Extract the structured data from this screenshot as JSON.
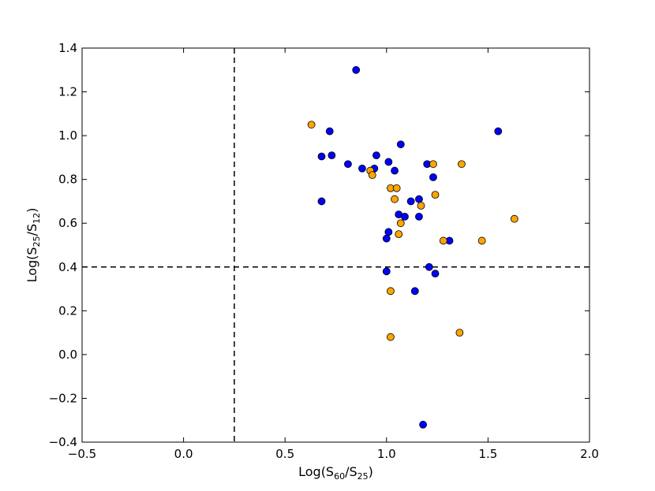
{
  "chart_data": {
    "type": "scatter",
    "title": "",
    "xlabel": {
      "base": "Log(S",
      "sub1": "60",
      "mid": "/S",
      "sub2": "25",
      "end": ")"
    },
    "ylabel": {
      "base": "Log(S",
      "sub1": "25",
      "mid": "/S",
      "sub2": "12",
      "end": ")"
    },
    "xlim": [
      -0.5,
      2.0
    ],
    "ylim": [
      -0.4,
      1.4
    ],
    "xticks": [
      -0.5,
      0.0,
      0.5,
      1.0,
      1.5,
      2.0
    ],
    "xtick_labels": [
      "−0.5",
      "0.0",
      "0.5",
      "1.0",
      "1.5",
      "2.0"
    ],
    "yticks": [
      -0.4,
      -0.2,
      0.0,
      0.2,
      0.4,
      0.6,
      0.8,
      1.0,
      1.2,
      1.4
    ],
    "ytick_labels": [
      "−0.4",
      "−0.2",
      "0.0",
      "0.2",
      "0.4",
      "0.6",
      "0.8",
      "1.0",
      "1.2",
      "1.4"
    ],
    "grid": false,
    "reference_lines": {
      "vertical_x": 0.25,
      "horizontal_y": 0.4
    },
    "series": [
      {
        "color": "#0000ff",
        "points": [
          [
            0.85,
            1.3
          ],
          [
            0.72,
            1.02
          ],
          [
            1.55,
            1.02
          ],
          [
            1.07,
            0.96
          ],
          [
            0.68,
            0.905
          ],
          [
            0.73,
            0.91
          ],
          [
            0.95,
            0.91
          ],
          [
            0.81,
            0.87
          ],
          [
            0.88,
            0.85
          ],
          [
            0.94,
            0.85
          ],
          [
            1.01,
            0.88
          ],
          [
            1.04,
            0.84
          ],
          [
            1.2,
            0.87
          ],
          [
            1.23,
            0.81
          ],
          [
            0.68,
            0.7
          ],
          [
            1.12,
            0.7
          ],
          [
            1.16,
            0.71
          ],
          [
            1.06,
            0.64
          ],
          [
            1.09,
            0.63
          ],
          [
            1.16,
            0.63
          ],
          [
            1.01,
            0.56
          ],
          [
            1.0,
            0.53
          ],
          [
            1.31,
            0.52
          ],
          [
            1.21,
            0.4
          ],
          [
            1.0,
            0.38
          ],
          [
            1.24,
            0.37
          ],
          [
            1.14,
            0.29
          ],
          [
            1.18,
            -0.32
          ]
        ]
      },
      {
        "color": "#ffa500",
        "points": [
          [
            0.63,
            1.05
          ],
          [
            1.37,
            0.87
          ],
          [
            1.23,
            0.87
          ],
          [
            0.92,
            0.84
          ],
          [
            0.93,
            0.82
          ],
          [
            1.02,
            0.76
          ],
          [
            1.05,
            0.76
          ],
          [
            1.24,
            0.73
          ],
          [
            1.04,
            0.71
          ],
          [
            1.17,
            0.68
          ],
          [
            1.63,
            0.62
          ],
          [
            1.07,
            0.6
          ],
          [
            1.06,
            0.55
          ],
          [
            1.28,
            0.52
          ],
          [
            1.47,
            0.52
          ],
          [
            1.02,
            0.29
          ],
          [
            1.36,
            0.1
          ],
          [
            1.02,
            0.08
          ]
        ]
      }
    ]
  }
}
